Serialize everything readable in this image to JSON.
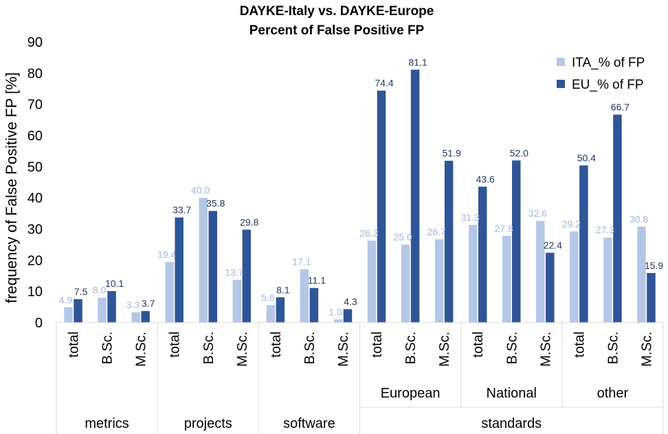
{
  "chart_data": {
    "type": "bar",
    "title": "DAYKE-Italy vs. DAYKE-Europe",
    "subtitle": "Percent of False Positive FP",
    "ylabel": "frequency of False Positive FP  [%]",
    "ylim": [
      0,
      90
    ],
    "yticks": [
      "0",
      "10",
      "20",
      "30",
      "40",
      "50",
      "60",
      "70",
      "80",
      "90"
    ],
    "categories": [
      {
        "label": "total",
        "subgroup": "",
        "group": "metrics"
      },
      {
        "label": "B.Sc.",
        "subgroup": "",
        "group": "metrics"
      },
      {
        "label": "M.Sc.",
        "subgroup": "",
        "group": "metrics"
      },
      {
        "label": "total",
        "subgroup": "",
        "group": "projects"
      },
      {
        "label": "B.Sc.",
        "subgroup": "",
        "group": "projects"
      },
      {
        "label": "M.Sc.",
        "subgroup": "",
        "group": "projects"
      },
      {
        "label": "total",
        "subgroup": "",
        "group": "software"
      },
      {
        "label": "B.Sc.",
        "subgroup": "",
        "group": "software"
      },
      {
        "label": "M.Sc.",
        "subgroup": "",
        "group": "software"
      },
      {
        "label": "total",
        "subgroup": "European",
        "group": "standards"
      },
      {
        "label": "B.Sc.",
        "subgroup": "European",
        "group": "standards"
      },
      {
        "label": "M.Sc.",
        "subgroup": "European",
        "group": "standards"
      },
      {
        "label": "total",
        "subgroup": "National",
        "group": "standards"
      },
      {
        "label": "B.Sc.",
        "subgroup": "National",
        "group": "standards"
      },
      {
        "label": "M.Sc.",
        "subgroup": "National",
        "group": "standards"
      },
      {
        "label": "total",
        "subgroup": "other",
        "group": "standards"
      },
      {
        "label": "B.Sc.",
        "subgroup": "other",
        "group": "standards"
      },
      {
        "label": "M.Sc.",
        "subgroup": "other",
        "group": "standards"
      }
    ],
    "groups": [
      "metrics",
      "projects",
      "software",
      "standards"
    ],
    "subgroups": [
      "European",
      "National",
      "other"
    ],
    "series": [
      {
        "name": "ITA_% of FP",
        "color": "#b4c7e7",
        "label_color": "#9fb6dd",
        "values": [
          4.9,
          8.0,
          3.3,
          19.4,
          40.0,
          13.7,
          5.6,
          17.1,
          1.0,
          26.3,
          25.0,
          26.7,
          31.3,
          27.8,
          32.6,
          29.2,
          27.3,
          30.8
        ],
        "labels": [
          "4.9",
          "8.0",
          "3.3",
          "19.4",
          "40.0",
          "13.7",
          "5.6",
          "17.1",
          "1.0",
          "26.3",
          "25.0",
          "26.7",
          "31.3",
          "27.8",
          "32.6",
          "29.2",
          "27.3",
          "30.8"
        ]
      },
      {
        "name": "EU_% of FP",
        "color": "#2f5597",
        "label_color": "#1f3864",
        "values": [
          7.5,
          10.1,
          3.7,
          33.7,
          35.8,
          29.8,
          8.1,
          11.1,
          4.3,
          74.4,
          81.1,
          51.9,
          43.6,
          52.0,
          22.4,
          50.4,
          66.7,
          15.9
        ],
        "labels": [
          "7.5",
          "10.1",
          "3.7",
          "33.7",
          "35.8",
          "29.8",
          "8.1",
          "11.1",
          "4.3",
          "74.4",
          "81.1",
          "51.9",
          "43.6",
          "52.0",
          "22.4",
          "50.4",
          "66.7",
          "15.9"
        ]
      }
    ],
    "legend_position": "top-right",
    "grid": false
  }
}
